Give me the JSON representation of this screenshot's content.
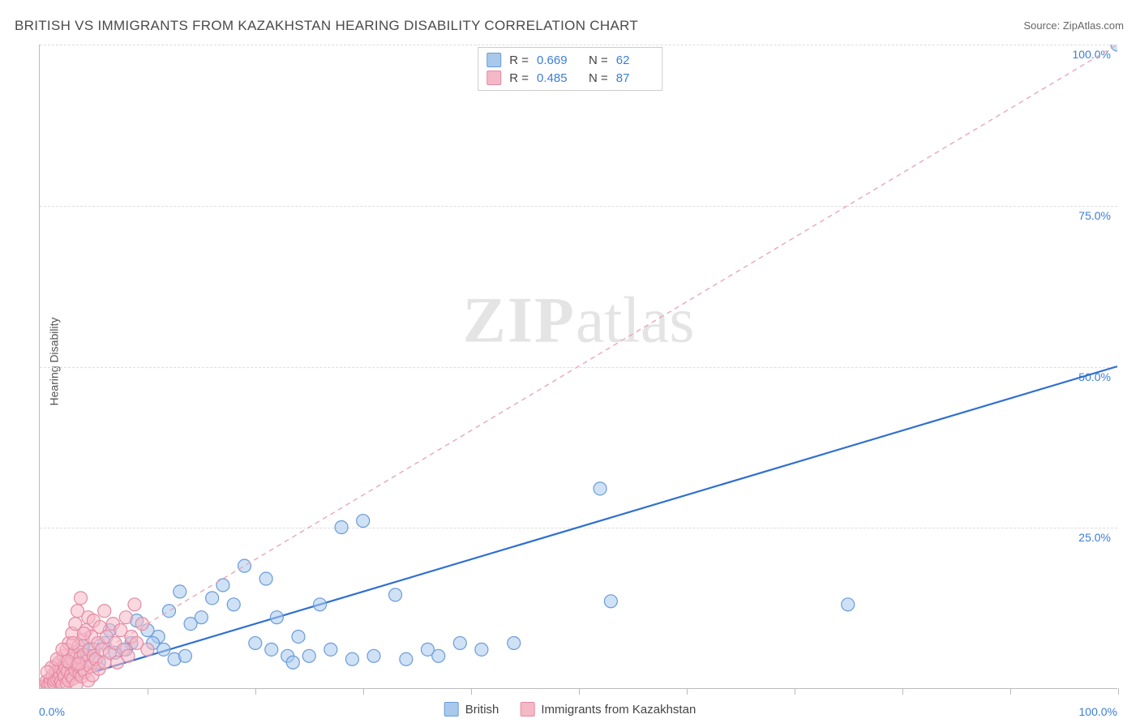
{
  "title": "BRITISH VS IMMIGRANTS FROM KAZAKHSTAN HEARING DISABILITY CORRELATION CHART",
  "source_label": "Source: ",
  "source_value": "ZipAtlas.com",
  "y_axis_title": "Hearing Disability",
  "watermark_bold": "ZIP",
  "watermark_rest": "atlas",
  "chart": {
    "type": "scatter",
    "xlim": [
      0,
      100
    ],
    "ylim": [
      0,
      100
    ],
    "x_ticks": [
      10,
      20,
      30,
      40,
      50,
      60,
      70,
      80,
      90,
      100
    ],
    "y_grid": [
      25,
      50,
      75,
      100
    ],
    "y_tick_labels": [
      "25.0%",
      "50.0%",
      "75.0%",
      "100.0%"
    ],
    "x_origin_label": "0.0%",
    "x_max_label": "100.0%",
    "grid_color": "#dddddd",
    "axis_color": "#bbbbbb",
    "background_color": "#ffffff",
    "tick_label_color": "#3b7dd8",
    "tick_label_fontsize": 14,
    "series": [
      {
        "name": "British",
        "color_fill": "#a8c8ec",
        "color_stroke": "#6a9bd8",
        "marker_radius": 8,
        "trend": {
          "slope": 0.5,
          "intercept": 0,
          "dash": null,
          "stroke": "#2f6fd0",
          "width": 2.2
        },
        "points": [
          [
            100,
            100
          ],
          [
            52,
            31
          ],
          [
            75,
            13
          ],
          [
            53,
            13.5
          ],
          [
            28,
            25
          ],
          [
            30,
            26
          ],
          [
            33,
            14.5
          ],
          [
            37,
            5
          ],
          [
            39,
            7
          ],
          [
            41,
            6
          ],
          [
            44,
            7
          ],
          [
            27,
            6
          ],
          [
            29,
            4.5
          ],
          [
            31,
            5
          ],
          [
            23,
            5
          ],
          [
            24,
            8
          ],
          [
            26,
            13
          ],
          [
            19,
            19
          ],
          [
            21,
            17
          ],
          [
            22,
            11
          ],
          [
            16,
            14
          ],
          [
            17,
            16
          ],
          [
            18,
            13
          ],
          [
            13,
            15
          ],
          [
            14,
            10
          ],
          [
            15,
            11
          ],
          [
            12,
            12
          ],
          [
            11,
            8
          ],
          [
            10,
            9
          ],
          [
            9,
            10.5
          ],
          [
            8.5,
            7
          ],
          [
            8,
            6
          ],
          [
            7,
            5.5
          ],
          [
            6.5,
            9
          ],
          [
            6,
            7
          ],
          [
            5.5,
            4
          ],
          [
            5,
            6
          ],
          [
            4.5,
            5
          ],
          [
            4.2,
            3.5
          ],
          [
            4,
            6.5
          ],
          [
            3.8,
            4
          ],
          [
            3.5,
            3
          ],
          [
            3.2,
            5
          ],
          [
            3,
            2.5
          ],
          [
            2.8,
            3.5
          ],
          [
            2.5,
            2
          ],
          [
            2.3,
            4
          ],
          [
            2,
            3
          ],
          [
            1.8,
            2
          ],
          [
            1.6,
            2.5
          ],
          [
            1.4,
            1.5
          ],
          [
            1.2,
            2
          ],
          [
            10.5,
            7
          ],
          [
            11.5,
            6
          ],
          [
            12.5,
            4.5
          ],
          [
            13.5,
            5
          ],
          [
            20,
            7
          ],
          [
            21.5,
            6
          ],
          [
            23.5,
            4
          ],
          [
            25,
            5
          ],
          [
            34,
            4.5
          ],
          [
            36,
            6
          ]
        ]
      },
      {
        "name": "Immigrants from Kazakhstan",
        "color_fill": "#f5b8c6",
        "color_stroke": "#e48aa3",
        "marker_radius": 8,
        "trend": {
          "slope": 1.0,
          "intercept": 0,
          "dash": "6,5",
          "stroke": "#e9a7b8",
          "width": 1.4
        },
        "points": [
          [
            0.3,
            0.2
          ],
          [
            0.5,
            0.4
          ],
          [
            0.6,
            1
          ],
          [
            0.8,
            0.5
          ],
          [
            1,
            0.7
          ],
          [
            1,
            1.5
          ],
          [
            1.2,
            2
          ],
          [
            1.3,
            0.8
          ],
          [
            1.4,
            1.2
          ],
          [
            1.5,
            2.5
          ],
          [
            1.5,
            3.5
          ],
          [
            1.6,
            1.4
          ],
          [
            1.7,
            2.8
          ],
          [
            1.8,
            1.6
          ],
          [
            1.8,
            4
          ],
          [
            1.9,
            2.2
          ],
          [
            2,
            1
          ],
          [
            2,
            3
          ],
          [
            2.1,
            0.5
          ],
          [
            2.2,
            2.4
          ],
          [
            2.2,
            5
          ],
          [
            2.3,
            1.8
          ],
          [
            2.4,
            3.2
          ],
          [
            2.5,
            0.8
          ],
          [
            2.5,
            6
          ],
          [
            2.6,
            2.6
          ],
          [
            2.7,
            1.2
          ],
          [
            2.7,
            7
          ],
          [
            2.8,
            3.8
          ],
          [
            2.9,
            2
          ],
          [
            3,
            4.5
          ],
          [
            3,
            8.5
          ],
          [
            3.1,
            1.5
          ],
          [
            3.2,
            5.5
          ],
          [
            3.3,
            2.8
          ],
          [
            3.3,
            10
          ],
          [
            3.4,
            0.6
          ],
          [
            3.5,
            3.5
          ],
          [
            3.5,
            12
          ],
          [
            3.6,
            6.5
          ],
          [
            3.7,
            2.2
          ],
          [
            3.8,
            4.8
          ],
          [
            3.8,
            14
          ],
          [
            3.9,
            1.8
          ],
          [
            4,
            3
          ],
          [
            4,
            7.5
          ],
          [
            4.1,
            5.2
          ],
          [
            4.2,
            2.5
          ],
          [
            4.3,
            9
          ],
          [
            4.4,
            4.2
          ],
          [
            4.5,
            1.2
          ],
          [
            4.5,
            11
          ],
          [
            4.6,
            6
          ],
          [
            4.7,
            3.4
          ],
          [
            4.8,
            8
          ],
          [
            4.9,
            2
          ],
          [
            5,
            5
          ],
          [
            5,
            10.5
          ],
          [
            5.2,
            4.5
          ],
          [
            5.4,
            7
          ],
          [
            5.5,
            3
          ],
          [
            5.6,
            9.5
          ],
          [
            5.8,
            6
          ],
          [
            6,
            4
          ],
          [
            6,
            12
          ],
          [
            6.2,
            8
          ],
          [
            6.5,
            5.5
          ],
          [
            6.8,
            10
          ],
          [
            7,
            7
          ],
          [
            7.2,
            4
          ],
          [
            7.5,
            9
          ],
          [
            7.8,
            6
          ],
          [
            8,
            11
          ],
          [
            8.2,
            5
          ],
          [
            8.5,
            8
          ],
          [
            8.8,
            13
          ],
          [
            9,
            7
          ],
          [
            9.5,
            10
          ],
          [
            10,
            6
          ],
          [
            1.1,
            3.2
          ],
          [
            1.6,
            4.5
          ],
          [
            2.1,
            6
          ],
          [
            2.6,
            4.2
          ],
          [
            3.1,
            7
          ],
          [
            3.6,
            3.8
          ],
          [
            4.1,
            8.5
          ],
          [
            0.7,
            2.5
          ]
        ]
      }
    ],
    "legend_top": [
      {
        "swatch_fill": "#a8c8ec",
        "swatch_stroke": "#6a9bd8",
        "r_label": "R =",
        "r_value": "0.669",
        "n_label": "N =",
        "n_value": "62"
      },
      {
        "swatch_fill": "#f5b8c6",
        "swatch_stroke": "#e48aa3",
        "r_label": "R =",
        "r_value": "0.485",
        "n_label": "N =",
        "n_value": "87"
      }
    ],
    "legend_bottom": [
      {
        "swatch_fill": "#a8c8ec",
        "swatch_stroke": "#6a9bd8",
        "label": "British"
      },
      {
        "swatch_fill": "#f5b8c6",
        "swatch_stroke": "#e48aa3",
        "label": "Immigrants from Kazakhstan"
      }
    ]
  }
}
